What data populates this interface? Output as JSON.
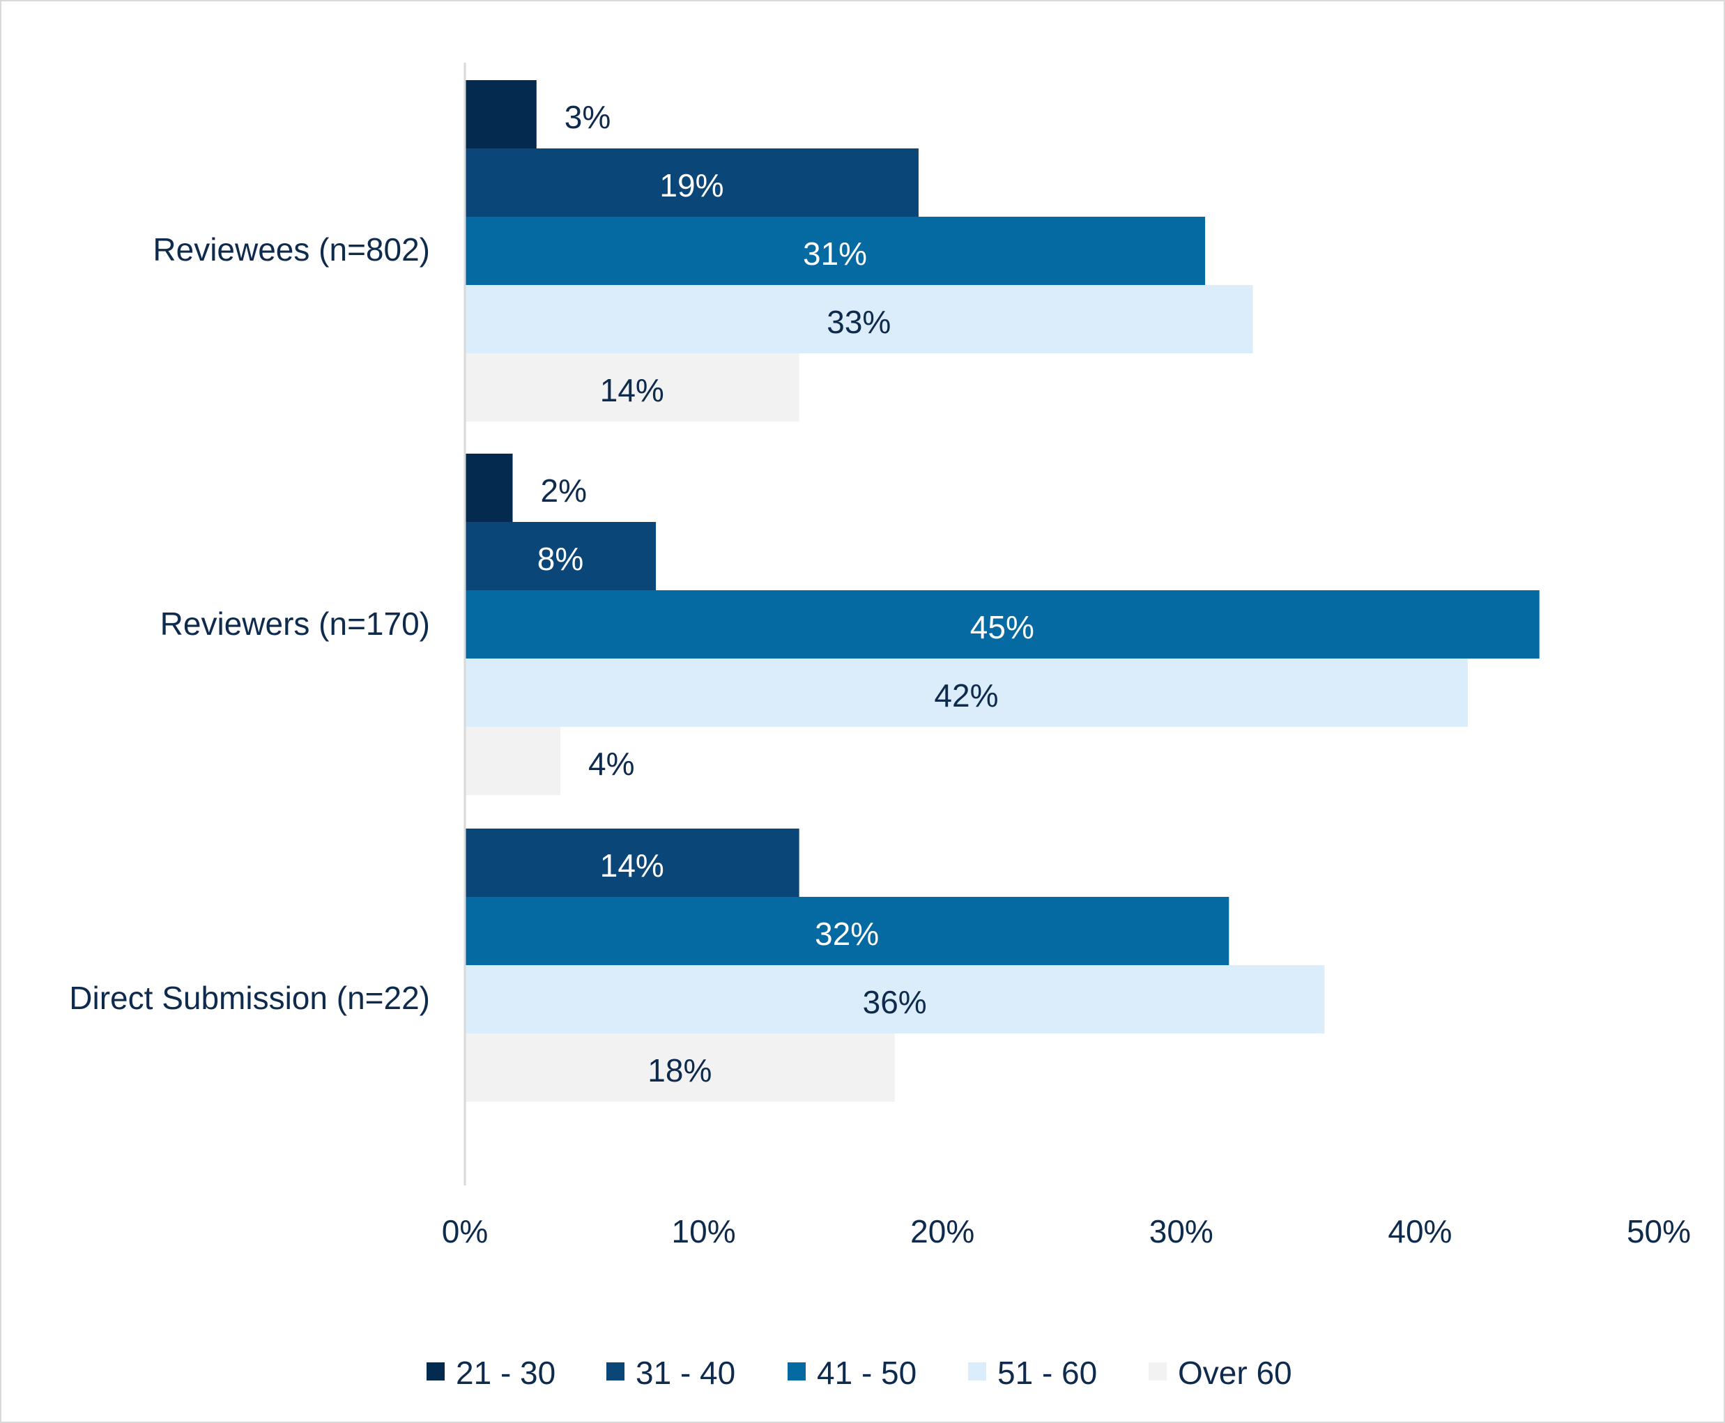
{
  "chart_data": {
    "type": "bar",
    "orientation": "horizontal",
    "title": "",
    "xlabel": "",
    "ylabel": "",
    "xlim": [
      0,
      50
    ],
    "x_ticks": [
      0,
      10,
      20,
      30,
      40,
      50
    ],
    "x_tick_labels": [
      "0%",
      "10%",
      "20%",
      "30%",
      "40%",
      "50%"
    ],
    "grid": false,
    "legend_position": "bottom",
    "categories": [
      "Reviewees (n=802)",
      "Reviewers (n=170)",
      "Direct Submission (n=22)"
    ],
    "series": [
      {
        "name": "21 - 30",
        "color": "#052a4f",
        "label_color": "#0e2a4c",
        "values": [
          3,
          2,
          null
        ],
        "labels": [
          "3%",
          "2%",
          ""
        ]
      },
      {
        "name": "31 - 40",
        "color": "#0a4677",
        "label_color": "#ffffff",
        "values": [
          19,
          8,
          14
        ],
        "labels": [
          "19%",
          "8%",
          "14%"
        ]
      },
      {
        "name": "41 - 50",
        "color": "#056aa2",
        "label_color": "#ffffff",
        "values": [
          31,
          45,
          32
        ],
        "labels": [
          "31%",
          "45%",
          "32%"
        ]
      },
      {
        "name": "51 - 60",
        "color": "#dbecfa",
        "label_color": "#0e2a4c",
        "values": [
          33,
          42,
          36
        ],
        "labels": [
          "33%",
          "42%",
          "36%"
        ]
      },
      {
        "name": "Over 60",
        "color": "#f2f2f2",
        "label_color": "#0e2a4c",
        "values": [
          14,
          4,
          18
        ],
        "labels": [
          "14%",
          "4%",
          "18%"
        ]
      }
    ],
    "text_color": "#0e2a4c",
    "axis_color": "#d9d9d9"
  }
}
